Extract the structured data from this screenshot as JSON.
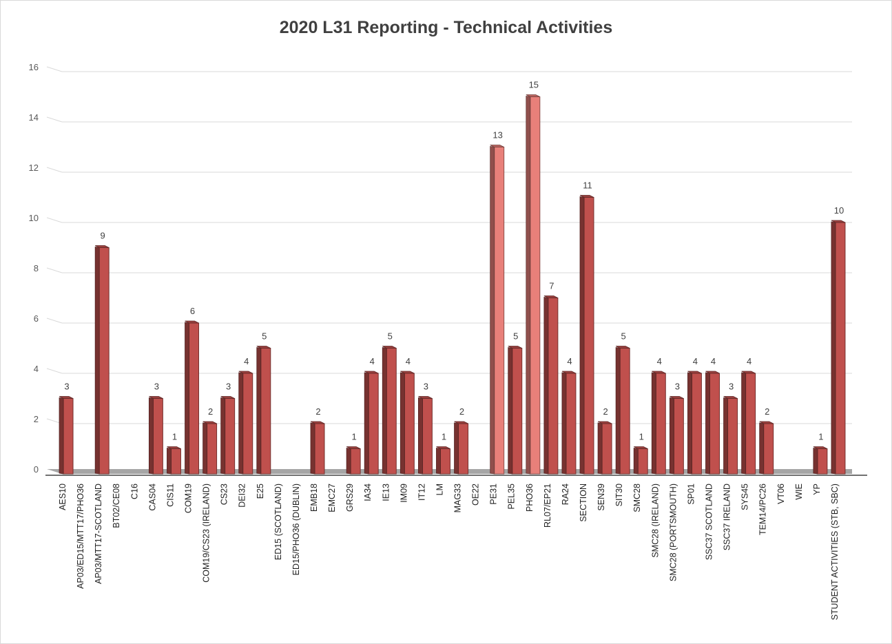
{
  "chart_data": {
    "type": "bar",
    "title": "2020 L31 Reporting - Technical Activities",
    "xlabel": "",
    "ylabel": "",
    "ylim": [
      0,
      16
    ],
    "yticks": [
      0,
      2,
      4,
      6,
      8,
      10,
      12,
      14,
      16
    ],
    "grid": true,
    "legend": "none",
    "bar_color": "#c0504d",
    "highlight_color": "#e8807a",
    "categories": [
      "AES10",
      "AP03/ED15/MTT17/PHO36",
      "AP03/MTT17-SCOTLAND",
      "BT02/CE08",
      "C16",
      "CAS04",
      "CIS11",
      "COM19",
      "COM19/CS23 (IRELAND)",
      "CS23",
      "DEI32",
      "E25",
      "ED15 (SCOTLAND)",
      "ED15/PHO36 (DUBLIN)",
      "EMB18",
      "EMC27",
      "GRS29",
      "IA34",
      "IE13",
      "IM09",
      "IT12",
      "LM",
      "MAG33",
      "OE22",
      "PE31",
      "PEL35",
      "PHO36",
      "RL07/EP21",
      "RA24",
      "SECTION",
      "SEN39",
      "SIT30",
      "SMC28",
      "SMC28 (IRELAND)",
      "SMC28 (PORTSMOUTH)",
      "SP01",
      "SSC37 SCOTLAND",
      "SSC37 IRELAND",
      "SYS45",
      "TEM14/PC26",
      "VT06",
      "WIE",
      "YP",
      "STUDENT ACTIVITIES (STB, SBC)"
    ],
    "values": [
      3,
      0,
      9,
      0,
      0,
      3,
      1,
      6,
      2,
      3,
      4,
      5,
      0,
      0,
      2,
      0,
      1,
      4,
      5,
      4,
      3,
      1,
      2,
      0,
      13,
      5,
      15,
      7,
      4,
      11,
      2,
      5,
      1,
      4,
      3,
      4,
      4,
      3,
      4,
      2,
      0,
      0,
      1,
      10
    ],
    "data_labels": [
      "3",
      "",
      "9",
      "",
      "",
      "3",
      "1",
      "6",
      "2",
      "3",
      "4",
      "5",
      "",
      "",
      "2",
      "",
      "1",
      "4",
      "5",
      "4",
      "3",
      "1",
      "2",
      "",
      "13",
      "5",
      "15",
      "7",
      "4",
      "11",
      "2",
      "5",
      "1",
      "4",
      "3",
      "4",
      "4",
      "3",
      "4",
      "2",
      "",
      "",
      "1",
      "10"
    ]
  }
}
